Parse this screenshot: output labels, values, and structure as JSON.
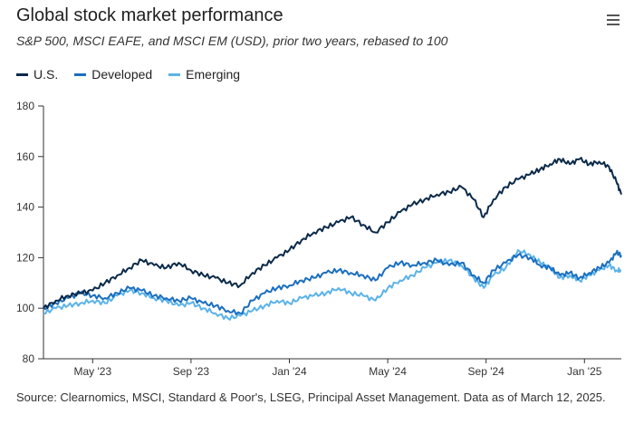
{
  "header": {
    "title": "Global stock market performance",
    "subtitle": "S&P 500, MSCI EAFE, and MSCI EM (USD), prior two years, rebased to 100",
    "menu_icon": "hamburger-menu-icon"
  },
  "chart_data": {
    "type": "line",
    "title": "Global stock market performance",
    "subtitle": "S&P 500, MSCI EAFE, and MSCI EM (USD), prior two years, rebased to 100",
    "xlabel": "",
    "ylabel": "",
    "ylim": [
      80,
      180
    ],
    "yticks": [
      "80",
      "100",
      "120",
      "140",
      "160",
      "180"
    ],
    "xlim": [
      0,
      23.5
    ],
    "xticks": [
      {
        "label": "May '23",
        "x": 2
      },
      {
        "label": "Sep '23",
        "x": 6
      },
      {
        "label": "Jan '24",
        "x": 10
      },
      {
        "label": "May '24",
        "x": 14
      },
      {
        "label": "Sep '24",
        "x": 18
      },
      {
        "label": "Jan '25",
        "x": 22
      }
    ],
    "grid": false,
    "legend_position": "top-left",
    "series": [
      {
        "name": "U.S.",
        "color": "#0b2a4a",
        "points": [
          [
            0,
            100
          ],
          [
            0.5,
            103
          ],
          [
            1,
            105
          ],
          [
            1.5,
            106
          ],
          [
            2,
            107
          ],
          [
            2.5,
            110
          ],
          [
            3,
            113
          ],
          [
            3.5,
            116
          ],
          [
            4,
            119
          ],
          [
            4.5,
            117
          ],
          [
            5,
            116
          ],
          [
            5.5,
            118
          ],
          [
            6,
            115
          ],
          [
            6.5,
            113
          ],
          [
            7,
            112
          ],
          [
            7.5,
            110
          ],
          [
            8,
            109
          ],
          [
            8.5,
            114
          ],
          [
            9,
            117
          ],
          [
            9.5,
            120
          ],
          [
            10,
            123
          ],
          [
            10.5,
            127
          ],
          [
            11,
            130
          ],
          [
            11.5,
            132
          ],
          [
            12,
            134
          ],
          [
            12.5,
            136
          ],
          [
            13,
            133
          ],
          [
            13.5,
            130
          ],
          [
            14,
            134
          ],
          [
            14.5,
            138
          ],
          [
            15,
            141
          ],
          [
            15.5,
            143
          ],
          [
            16,
            145
          ],
          [
            16.5,
            146
          ],
          [
            17,
            148
          ],
          [
            17.5,
            143
          ],
          [
            17.9,
            136
          ],
          [
            18.3,
            143
          ],
          [
            18.8,
            148
          ],
          [
            19.3,
            151
          ],
          [
            19.8,
            153
          ],
          [
            20.2,
            155
          ],
          [
            20.6,
            157
          ],
          [
            21,
            159
          ],
          [
            21.4,
            157
          ],
          [
            21.8,
            159
          ],
          [
            22.2,
            157
          ],
          [
            22.6,
            158
          ],
          [
            23,
            156
          ],
          [
            23.3,
            150
          ],
          [
            23.5,
            145
          ]
        ]
      },
      {
        "name": "Developed",
        "color": "#1b6fbf",
        "points": [
          [
            0,
            100
          ],
          [
            0.5,
            102
          ],
          [
            1,
            104
          ],
          [
            1.5,
            106
          ],
          [
            2,
            105
          ],
          [
            2.5,
            104
          ],
          [
            3,
            106
          ],
          [
            3.5,
            108
          ],
          [
            4,
            107
          ],
          [
            4.5,
            105
          ],
          [
            5,
            104
          ],
          [
            5.5,
            103
          ],
          [
            6,
            104
          ],
          [
            6.5,
            102
          ],
          [
            7,
            101
          ],
          [
            7.5,
            99
          ],
          [
            8,
            98
          ],
          [
            8.5,
            103
          ],
          [
            9,
            106
          ],
          [
            9.5,
            108
          ],
          [
            10,
            109
          ],
          [
            10.5,
            111
          ],
          [
            11,
            112
          ],
          [
            11.5,
            114
          ],
          [
            12,
            115
          ],
          [
            12.5,
            114
          ],
          [
            13,
            113
          ],
          [
            13.5,
            111
          ],
          [
            14,
            116
          ],
          [
            14.5,
            118
          ],
          [
            15,
            117
          ],
          [
            15.5,
            118
          ],
          [
            16,
            119
          ],
          [
            16.5,
            117
          ],
          [
            17,
            118
          ],
          [
            17.5,
            113
          ],
          [
            17.9,
            110
          ],
          [
            18.3,
            115
          ],
          [
            18.8,
            118
          ],
          [
            19.3,
            121
          ],
          [
            19.8,
            120
          ],
          [
            20.2,
            117
          ],
          [
            20.6,
            116
          ],
          [
            21,
            113
          ],
          [
            21.4,
            114
          ],
          [
            21.8,
            112
          ],
          [
            22.2,
            114
          ],
          [
            22.6,
            116
          ],
          [
            23,
            118
          ],
          [
            23.3,
            122
          ],
          [
            23.5,
            121
          ]
        ]
      },
      {
        "name": "Emerging",
        "color": "#5bb3e8",
        "points": [
          [
            0,
            98
          ],
          [
            0.5,
            100
          ],
          [
            1,
            101
          ],
          [
            1.5,
            102
          ],
          [
            2,
            103
          ],
          [
            2.5,
            102
          ],
          [
            3,
            105
          ],
          [
            3.5,
            107
          ],
          [
            4,
            106
          ],
          [
            4.5,
            104
          ],
          [
            5,
            103
          ],
          [
            5.5,
            101
          ],
          [
            6,
            102
          ],
          [
            6.5,
            100
          ],
          [
            7,
            98
          ],
          [
            7.5,
            96
          ],
          [
            8,
            97
          ],
          [
            8.5,
            99
          ],
          [
            9,
            101
          ],
          [
            9.5,
            103
          ],
          [
            10,
            102
          ],
          [
            10.5,
            104
          ],
          [
            11,
            105
          ],
          [
            11.5,
            106
          ],
          [
            12,
            108
          ],
          [
            12.5,
            106
          ],
          [
            13,
            105
          ],
          [
            13.5,
            103
          ],
          [
            14,
            108
          ],
          [
            14.5,
            111
          ],
          [
            15,
            113
          ],
          [
            15.5,
            116
          ],
          [
            16,
            118
          ],
          [
            16.5,
            119
          ],
          [
            17,
            117
          ],
          [
            17.5,
            112
          ],
          [
            17.9,
            108
          ],
          [
            18.3,
            113
          ],
          [
            18.8,
            116
          ],
          [
            19.3,
            123
          ],
          [
            19.8,
            121
          ],
          [
            20.2,
            118
          ],
          [
            20.6,
            116
          ],
          [
            21,
            112
          ],
          [
            21.4,
            113
          ],
          [
            21.8,
            111
          ],
          [
            22.2,
            113
          ],
          [
            22.6,
            115
          ],
          [
            23,
            117
          ],
          [
            23.3,
            115
          ],
          [
            23.5,
            115
          ]
        ]
      }
    ]
  },
  "footer": {
    "source": "Source: Clearnomics, MSCI, Standard & Poor's, LSEG, Principal Asset Management. Data as of March 12, 2025."
  }
}
